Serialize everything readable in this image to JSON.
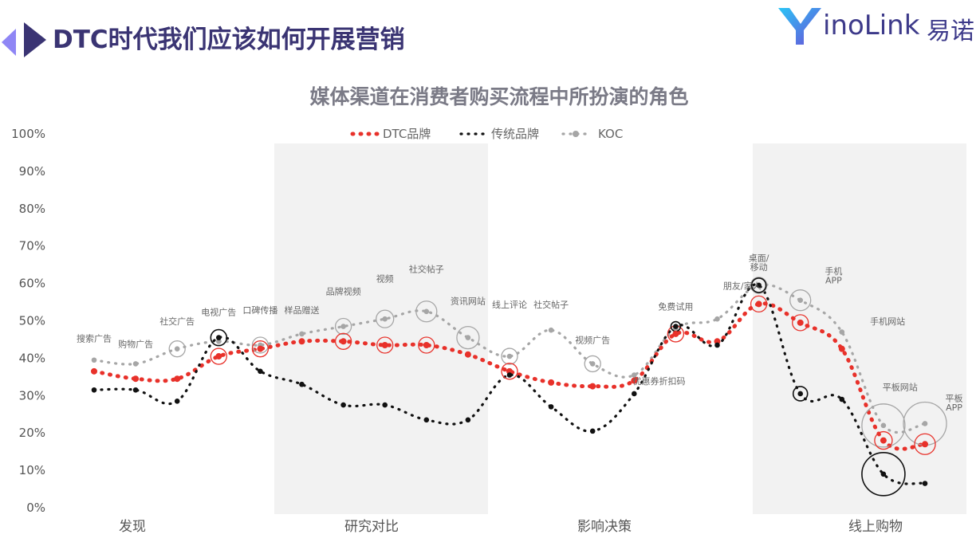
{
  "header": {
    "title": "DTC时代我们应该如何开展营销",
    "logo_text": "inoLink",
    "logo_cn": "易诺",
    "accent": "#3a3473"
  },
  "chart_data": {
    "type": "line",
    "title": "媒体渠道在消费者购买流程中所扮演的角色",
    "xlabel": "",
    "ylabel": "",
    "ylim": [
      0,
      100
    ],
    "yticks": [
      "0%",
      "10%",
      "20%",
      "30%",
      "40%",
      "50%",
      "60%",
      "70%",
      "80%",
      "90%",
      "100%"
    ],
    "legend_position": "top",
    "phases": [
      {
        "label": "发现",
        "shaded": false
      },
      {
        "label": "研究对比",
        "shaded": true
      },
      {
        "label": "影响决策",
        "shaded": false
      },
      {
        "label": "线上购物",
        "shaded": true
      }
    ],
    "categories": [
      "搜索广告",
      "购物广告",
      "社交广告",
      "电视广告",
      "口碑传播",
      "样品赠送",
      "品牌视频",
      "视频",
      "社交帖子",
      "资讯网站",
      "线上评论",
      "社交帖子",
      "视频广告",
      "优惠券折扣码",
      "免费试用",
      "朋友/家人",
      "桌面/移动",
      "手机APP",
      "手机网站",
      "平板网站",
      "平板APP"
    ],
    "series": [
      {
        "name": "DTC品牌",
        "color": "#e8312a",
        "dash": "dot-thick",
        "points": [
          [
            1,
            36.5
          ],
          [
            2,
            34.5
          ],
          [
            3,
            34.5
          ],
          [
            4,
            40.5
          ],
          [
            5,
            42.5
          ],
          [
            6,
            44.5
          ],
          [
            7,
            44.5
          ],
          [
            8,
            43.5
          ],
          [
            9,
            43.5
          ],
          [
            10,
            41
          ],
          [
            11,
            36.5
          ],
          [
            12,
            33.5
          ],
          [
            13,
            32.5
          ],
          [
            14,
            34
          ],
          [
            15,
            46.5
          ],
          [
            16,
            44.5
          ],
          [
            17,
            54.5
          ],
          [
            18,
            49.5
          ],
          [
            19,
            42.5
          ],
          [
            20,
            18
          ],
          [
            21,
            17
          ]
        ],
        "bubbles": [
          [
            4,
            40.5,
            10
          ],
          [
            5,
            42.5,
            10
          ],
          [
            7,
            44.5,
            10
          ],
          [
            8,
            43.5,
            10
          ],
          [
            9,
            43.5,
            10
          ],
          [
            11,
            36.5,
            10
          ],
          [
            15,
            46.5,
            10
          ],
          [
            17,
            54.5,
            10
          ],
          [
            18,
            49.5,
            10
          ],
          [
            20,
            18,
            11
          ],
          [
            21,
            17,
            13
          ]
        ]
      },
      {
        "name": "传统品牌",
        "color": "#111111",
        "dash": "dot",
        "points": [
          [
            1,
            31.5
          ],
          [
            2,
            31.5
          ],
          [
            3,
            28.5
          ],
          [
            4,
            45.5
          ],
          [
            5,
            36.5
          ],
          [
            6,
            33
          ],
          [
            7,
            27.5
          ],
          [
            8,
            27.5
          ],
          [
            9,
            23.5
          ],
          [
            10,
            23.5
          ],
          [
            11,
            35.5
          ],
          [
            12,
            27
          ],
          [
            13,
            20.5
          ],
          [
            14,
            30.5
          ],
          [
            15,
            48.5
          ],
          [
            16,
            43.5
          ],
          [
            17,
            59.5
          ],
          [
            18,
            30.5
          ],
          [
            19,
            29
          ],
          [
            20,
            9
          ],
          [
            21,
            6.5
          ]
        ],
        "bubbles": [
          [
            4,
            45.5,
            10
          ],
          [
            15,
            48.5,
            6
          ],
          [
            17,
            59.5,
            9
          ],
          [
            18,
            30.5,
            9
          ],
          [
            20,
            9,
            27
          ]
        ]
      },
      {
        "name": "KOC",
        "color": "#a6a6a6",
        "dash": "dot",
        "points": [
          [
            1,
            39.5
          ],
          [
            2,
            38.5
          ],
          [
            3,
            42.5
          ],
          [
            4,
            44.5
          ],
          [
            5,
            43.5
          ],
          [
            6,
            46.5
          ],
          [
            7,
            48.5
          ],
          [
            8,
            50.5
          ],
          [
            9,
            52.5
          ],
          [
            10,
            45.5
          ],
          [
            11,
            40.5
          ],
          [
            12,
            47.5
          ],
          [
            13,
            38.5
          ],
          [
            14,
            35.5
          ],
          [
            15,
            48
          ],
          [
            16,
            50.5
          ],
          [
            17,
            59.5
          ],
          [
            18,
            55.5
          ],
          [
            19,
            47
          ],
          [
            20,
            22
          ],
          [
            21,
            22.5
          ]
        ],
        "bubbles": [
          [
            3,
            42.5,
            10
          ],
          [
            5,
            43.5,
            10
          ],
          [
            7,
            48.5,
            10
          ],
          [
            8,
            50.5,
            11
          ],
          [
            9,
            52.5,
            13
          ],
          [
            10,
            45.5,
            14
          ],
          [
            11,
            40.5,
            10
          ],
          [
            13,
            38.5,
            10
          ],
          [
            17,
            59.5,
            10
          ],
          [
            18,
            55.5,
            13
          ],
          [
            20,
            22,
            27
          ],
          [
            21,
            22.5,
            27
          ]
        ]
      }
    ],
    "annotations": [
      {
        "text": "搜索广告",
        "x": 1,
        "y": 44.5
      },
      {
        "text": "购物广告",
        "x": 2,
        "y": 43
      },
      {
        "text": "社交广告",
        "x": 3,
        "y": 49
      },
      {
        "text": "电视广告",
        "x": 4,
        "y": 51.5
      },
      {
        "text": "口碑传播",
        "x": 5,
        "y": 52
      },
      {
        "text": "样品赠送",
        "x": 6,
        "y": 52
      },
      {
        "text": "品牌视频",
        "x": 7,
        "y": 57
      },
      {
        "text": "视频",
        "x": 8,
        "y": 60.5
      },
      {
        "text": "社交帖子",
        "x": 9,
        "y": 63
      },
      {
        "text": "资讯网站",
        "x": 10,
        "y": 54.5
      },
      {
        "text": "线上评论",
        "x": 11,
        "y": 53.5
      },
      {
        "text": "社交帖子",
        "x": 12,
        "y": 53.5
      },
      {
        "text": "视频广告",
        "x": 13,
        "y": 44
      },
      {
        "text": "优惠券折扣码",
        "x": 14.6,
        "y": 33
      },
      {
        "text": "免费试用",
        "x": 15,
        "y": 53
      },
      {
        "text": "朋友/家人",
        "x": 16.6,
        "y": 58.5
      },
      {
        "text": "桌面/",
        "x": 17,
        "y": 66
      },
      {
        "text": "移动",
        "x": 17,
        "y": 63.5
      },
      {
        "text": "手机",
        "x": 18.8,
        "y": 62.5
      },
      {
        "text": "APP",
        "x": 18.8,
        "y": 60
      },
      {
        "text": "手机网站",
        "x": 20.1,
        "y": 49
      },
      {
        "text": "平板网站",
        "x": 20.4,
        "y": 31.5
      },
      {
        "text": "平板",
        "x": 21.7,
        "y": 28.5
      },
      {
        "text": "APP",
        "x": 21.7,
        "y": 26
      }
    ]
  }
}
